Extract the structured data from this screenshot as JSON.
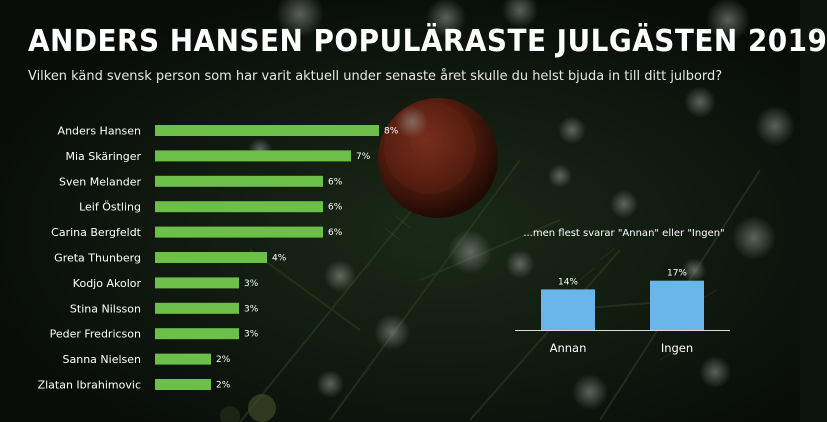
{
  "header": {
    "title": "ANDERS HANSEN POPULÄRASTE JULGÄSTEN 2019",
    "subtitle": "Vilken känd svensk person som har varit aktuell under senaste året skulle du helst bjuda in till ditt julbord?"
  },
  "colors": {
    "main_bar": "#6cc04a",
    "side_bar": "#6ab6ea",
    "text": "#ffffff"
  },
  "chart_data": [
    {
      "type": "bar",
      "orientation": "horizontal",
      "categories": [
        "Anders Hansen",
        "Mia Skäringer",
        "Sven Melander",
        "Leif Östling",
        "Carina Bergfeldt",
        "Greta Thunberg",
        "Kodjo Akolor",
        "Stina Nilsson",
        "Peder Fredricson",
        "Sanna Nielsen",
        "Zlatan Ibrahimovic"
      ],
      "values": [
        8,
        7,
        6,
        6,
        6,
        4,
        3,
        3,
        3,
        2,
        2
      ],
      "value_labels": [
        "8%",
        "7%",
        "6%",
        "6%",
        "6%",
        "4%",
        "3%",
        "3%",
        "3%",
        "2%",
        "2%"
      ],
      "unit": "%",
      "grid": false,
      "legend": "none"
    },
    {
      "type": "bar",
      "orientation": "vertical",
      "title": "...men flest svarar \"Annan\" eller \"Ingen\"",
      "categories": [
        "Annan",
        "Ingen"
      ],
      "values": [
        14,
        17
      ],
      "value_labels": [
        "14%",
        "17%"
      ],
      "unit": "%",
      "grid": false,
      "legend": "none"
    }
  ]
}
